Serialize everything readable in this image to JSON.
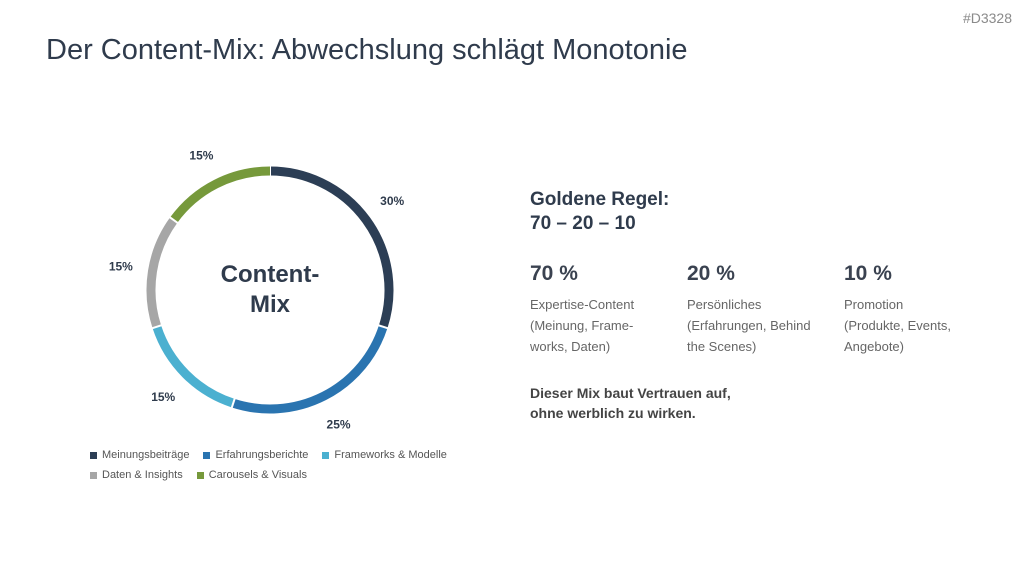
{
  "slide_id": "#D3328",
  "title": "Der Content-Mix: Abwechslung schlägt Monotonie",
  "chart_data": {
    "type": "pie",
    "donut": true,
    "center_text": [
      "Content-",
      "Mix"
    ],
    "slices": [
      {
        "name": "Meinungsbeiträge",
        "value": 30,
        "label": "30%",
        "color": "#2c3e55"
      },
      {
        "name": "Erfahrungsberichte",
        "value": 25,
        "label": "25%",
        "color": "#2a74b0"
      },
      {
        "name": "Frameworks & Modelle",
        "value": 15,
        "label": "15%",
        "color": "#4bb0d0"
      },
      {
        "name": "Daten & Insights",
        "value": 15,
        "label": "15%",
        "color": "#a6a6a6"
      },
      {
        "name": "Carousels & Visuals",
        "value": 15,
        "label": "15%",
        "color": "#76993b"
      }
    ],
    "legend_position": "bottom"
  },
  "rule": {
    "line1": "Goldene Regel:",
    "line2": "70 – 20 – 10"
  },
  "columns": [
    {
      "value": "70 %",
      "label": "Expertise-Content",
      "detail": "(Meinung, Frame-works, Daten)"
    },
    {
      "value": "20 %",
      "label": "Persönliches",
      "detail": "(Erfahrungen, Behind the Scenes)"
    },
    {
      "value": "10 %",
      "label": "Promotion",
      "detail": "(Produkte, Events, Angebote)"
    }
  ],
  "summary": {
    "line1": "Dieser Mix baut Vertrauen auf,",
    "line2": "ohne werblich zu wirken."
  }
}
